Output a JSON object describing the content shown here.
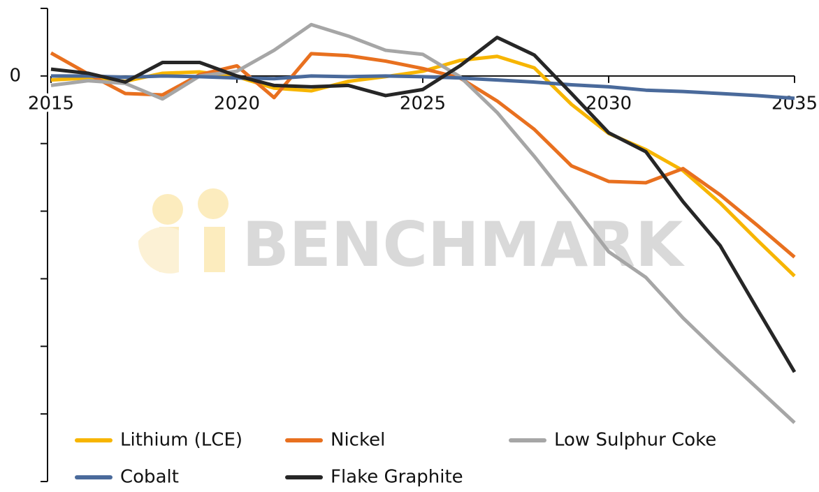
{
  "chart_data": {
    "type": "line",
    "watermark": "BENCHMARK",
    "x": [
      2015,
      2016,
      2017,
      2018,
      2019,
      2020,
      2021,
      2022,
      2023,
      2024,
      2025,
      2026,
      2027,
      2028,
      2029,
      2030,
      2031,
      2032,
      2033,
      2034,
      2035
    ],
    "xlim": [
      2015,
      2035
    ],
    "xticks": [
      2015,
      2020,
      2025,
      2030,
      2035
    ],
    "ylim": [
      -6,
      1
    ],
    "yticks": [
      0
    ],
    "ytick_marks": [
      1,
      0,
      -1,
      -2,
      -3,
      -4,
      -5,
      -6
    ],
    "legend": "bottom",
    "series": [
      {
        "name": "Lithium (LCE)",
        "color": "#f7b500",
        "values": [
          -0.06,
          -0.03,
          -0.08,
          0.04,
          0.06,
          -0.01,
          -0.18,
          -0.22,
          -0.08,
          -0.01,
          0.07,
          0.23,
          0.29,
          0.12,
          -0.42,
          -0.85,
          -1.09,
          -1.4,
          -1.88,
          -2.43,
          -2.96
        ]
      },
      {
        "name": "Nickel",
        "color": "#e8701f",
        "values": [
          0.34,
          0.03,
          -0.26,
          -0.28,
          0.02,
          0.15,
          -0.32,
          0.33,
          0.3,
          0.22,
          0.11,
          -0.03,
          -0.37,
          -0.79,
          -1.33,
          -1.56,
          -1.58,
          -1.37,
          -1.76,
          -2.21,
          -2.68
        ]
      },
      {
        "name": "Low Sulphur Coke",
        "color": "#a6a6a6",
        "values": [
          -0.14,
          -0.07,
          -0.11,
          -0.34,
          0,
          0.07,
          0.38,
          0.76,
          0.59,
          0.38,
          0.32,
          -0.01,
          -0.54,
          -1.19,
          -1.88,
          -2.6,
          -2.98,
          -3.58,
          -4.11,
          -4.62,
          -5.13
        ]
      },
      {
        "name": "Cobalt",
        "color": "#4a6a9b",
        "values": [
          0,
          0,
          -0.02,
          0,
          -0.01,
          -0.03,
          -0.04,
          0,
          -0.01,
          0,
          -0.01,
          -0.03,
          -0.06,
          -0.09,
          -0.13,
          -0.16,
          -0.21,
          -0.23,
          -0.26,
          -0.29,
          -0.33
        ]
      },
      {
        "name": "Flake Graphite",
        "color": "#262626",
        "values": [
          0.1,
          0.04,
          -0.09,
          0.2,
          0.2,
          0,
          -0.14,
          -0.16,
          -0.14,
          -0.29,
          -0.2,
          0.15,
          0.57,
          0.31,
          -0.26,
          -0.84,
          -1.12,
          -1.86,
          -2.51,
          -3.45,
          -4.38
        ]
      }
    ]
  }
}
